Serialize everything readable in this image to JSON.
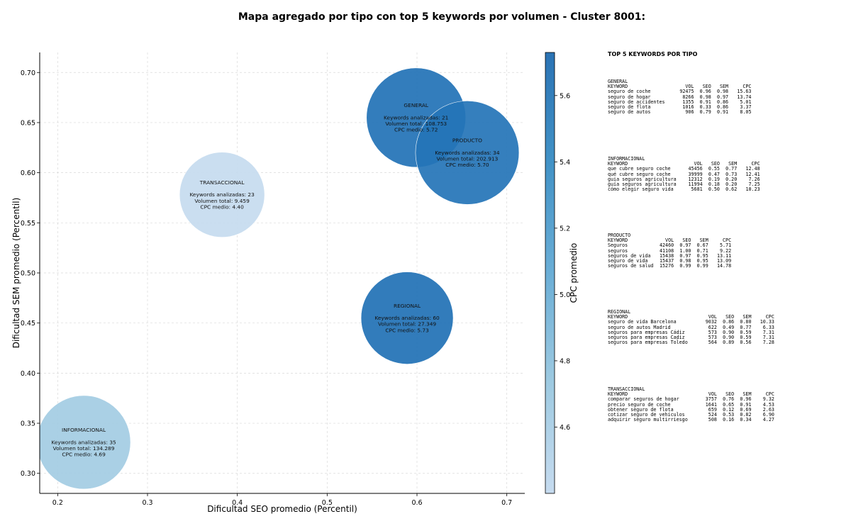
{
  "title": "Mapa agregado por tipo con top 5 keywords por volumen - Cluster 8001:",
  "chart_data": {
    "type": "scatter",
    "xlabel": "Dificultad SEO promedio (Percentil)",
    "ylabel": "Dificultad SEM promedio (Percentil)",
    "xlim": [
      0.18,
      0.72
    ],
    "ylim": [
      0.28,
      0.72
    ],
    "xticks": [
      "0.2",
      "0.3",
      "0.4",
      "0.5",
      "0.6",
      "0.7"
    ],
    "yticks": [
      "0.30",
      "0.35",
      "0.40",
      "0.45",
      "0.50",
      "0.55",
      "0.60",
      "0.65",
      "0.70"
    ],
    "grid": true,
    "colorbar": {
      "label": "CPC promedio",
      "range": [
        4.4,
        5.73
      ],
      "ticks": [
        "4.6",
        "4.8",
        "5.0",
        "5.2",
        "5.4",
        "5.6"
      ],
      "cmap": [
        "#c6dbef",
        "#9ecae1",
        "#6baed6",
        "#4292c6",
        "#2171b5"
      ]
    },
    "bubbles": [
      {
        "name": "GENERAL",
        "x": 0.599,
        "y": 0.655,
        "keywords": 21,
        "volume": 108753,
        "cpc": 5.72,
        "lines": [
          "GENERAL",
          "",
          "Keywords analizadas: 21",
          "Volumen total: 108.753",
          "CPC medio: 5.72"
        ]
      },
      {
        "name": "PRODUCTO",
        "x": 0.656,
        "y": 0.62,
        "keywords": 34,
        "volume": 202913,
        "cpc": 5.7,
        "lines": [
          "PRODUCTO",
          "",
          "Keywords analizadas: 34",
          "Volumen total: 202.913",
          "CPC medio: 5.70"
        ]
      },
      {
        "name": "TRANSACCIONAL",
        "x": 0.383,
        "y": 0.578,
        "keywords": 23,
        "volume": 9459,
        "cpc": 4.4,
        "lines": [
          "TRANSACCIONAL",
          "",
          "Keywords analizadas: 23",
          "Volumen total: 9.459",
          "CPC medio: 4.40"
        ]
      },
      {
        "name": "REGIONAL",
        "x": 0.589,
        "y": 0.455,
        "keywords": 60,
        "volume": 27349,
        "cpc": 5.73,
        "lines": [
          "REGIONAL",
          "",
          "Keywords analizadas: 60",
          "Volumen total: 27.349",
          "CPC medio: 5.73"
        ]
      },
      {
        "name": "INFORMACIONAL",
        "x": 0.229,
        "y": 0.331,
        "keywords": 35,
        "volume": 134289,
        "cpc": 4.69,
        "lines": [
          "INFORMACIONAL",
          "",
          "Keywords analizadas: 35",
          "Volumen total: 134.289",
          "CPC medio: 4.69"
        ]
      }
    ]
  },
  "side_panel": {
    "title": "TOP 5 KEYWORDS POR TIPO",
    "columns": [
      "KEYWORD",
      "VOL",
      "SEO",
      "SEM",
      "CPC"
    ],
    "groups": [
      {
        "name": "GENERAL",
        "rows": [
          [
            "seguro de coche",
            "92475",
            "0.96",
            "0.98",
            "15.63"
          ],
          [
            "seguro de hogar",
            "8266",
            "0.98",
            "0.97",
            "13.74"
          ],
          [
            "seguro de accidentes",
            "1355",
            "0.91",
            "0.86",
            "5.01"
          ],
          [
            "seguro de flota",
            "1016",
            "0.33",
            "0.86",
            "3.37"
          ],
          [
            "seguro de autos",
            "906",
            "0.79",
            "0.91",
            "8.05"
          ]
        ]
      },
      {
        "name": "INFORMACIONAL",
        "rows": [
          [
            "que cubre seguro coche",
            "45456",
            "0.55",
            "0.77",
            "12.48"
          ],
          [
            "qué cubre seguro coche",
            "39999",
            "0.47",
            "0.73",
            "12.41"
          ],
          [
            "guia seguros agricultura",
            "12312",
            "0.19",
            "0.20",
            "7.26"
          ],
          [
            "guía seguros agricultura",
            "11994",
            "0.18",
            "0.20",
            "7.25"
          ],
          [
            "cómo elegir seguro vida",
            "5681",
            "0.50",
            "0.62",
            "10.23"
          ]
        ]
      },
      {
        "name": "PRODUCTO",
        "rows": [
          [
            "Seguros",
            "42460",
            "0.97",
            "0.67",
            "5.71"
          ],
          [
            "seguros",
            "41108",
            "1.00",
            "0.71",
            "9.22"
          ],
          [
            "seguros de vida",
            "15438",
            "0.97",
            "0.95",
            "13.11"
          ],
          [
            "seguro de vida",
            "15437",
            "0.98",
            "0.95",
            "13.09"
          ],
          [
            "seguros de salud",
            "15276",
            "0.99",
            "0.99",
            "14.78"
          ]
        ]
      },
      {
        "name": "REGIONAL",
        "rows": [
          [
            "seguro de vida Barcelona",
            "9032",
            "0.86",
            "0.80",
            "10.33"
          ],
          [
            "seguro de autos Madrid",
            "622",
            "0.49",
            "0.77",
            "6.33"
          ],
          [
            "seguros para empresas Cádiz",
            "573",
            "0.90",
            "0.59",
            "7.31"
          ],
          [
            "seguros para empresas Cadiz",
            "573",
            "0.90",
            "0.59",
            "7.31"
          ],
          [
            "seguros para empresas Toledo",
            "564",
            "0.89",
            "0.56",
            "7.28"
          ]
        ]
      },
      {
        "name": "TRANSACCIONAL",
        "rows": [
          [
            "comparar seguros de hogar",
            "3757",
            "0.76",
            "0.96",
            "9.32"
          ],
          [
            "precio seguro de coche",
            "1641",
            "0.65",
            "0.91",
            "4.53"
          ],
          [
            "obtener seguro de flota",
            "659",
            "0.12",
            "0.69",
            "2.63"
          ],
          [
            "cotizar seguro de vehículos",
            "524",
            "0.53",
            "0.82",
            "6.90"
          ],
          [
            "adquirir seguro multirriesgo",
            "508",
            "0.16",
            "0.34",
            "4.27"
          ]
        ]
      }
    ]
  }
}
